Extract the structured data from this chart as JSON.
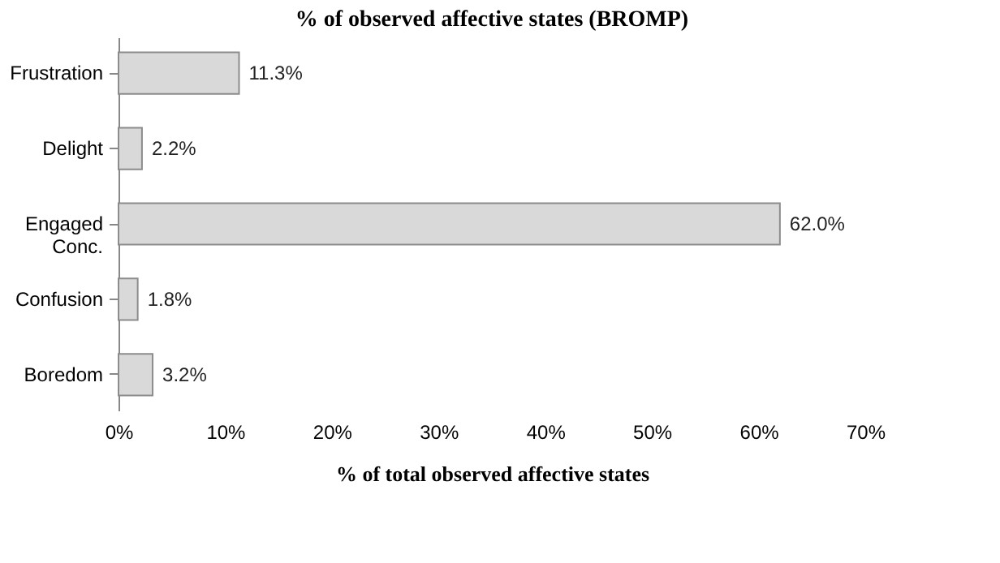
{
  "chart_data": {
    "type": "bar",
    "orientation": "horizontal",
    "title": "% of observed affective states (BROMP)",
    "xlabel": "% of total observed affective states",
    "categories": [
      "Frustration",
      "Delight",
      "Engaged Conc.",
      "Confusion",
      "Boredom"
    ],
    "values": [
      11.3,
      2.2,
      62.0,
      1.8,
      3.2
    ],
    "value_labels": [
      "11.3%",
      "2.2%",
      "62.0%",
      "1.8%",
      "3.2%"
    ],
    "color": "#d9d9d9",
    "xlim": [
      0,
      70
    ],
    "xticks": [
      {
        "value": 0,
        "label": "0%"
      },
      {
        "value": 10,
        "label": "10%"
      },
      {
        "value": 20,
        "label": "20%"
      },
      {
        "value": 30,
        "label": "30%"
      },
      {
        "value": 40,
        "label": "40%"
      },
      {
        "value": 50,
        "label": "50%"
      },
      {
        "value": 60,
        "label": "60%"
      },
      {
        "value": 70,
        "label": "70%"
      }
    ],
    "grid": false
  }
}
